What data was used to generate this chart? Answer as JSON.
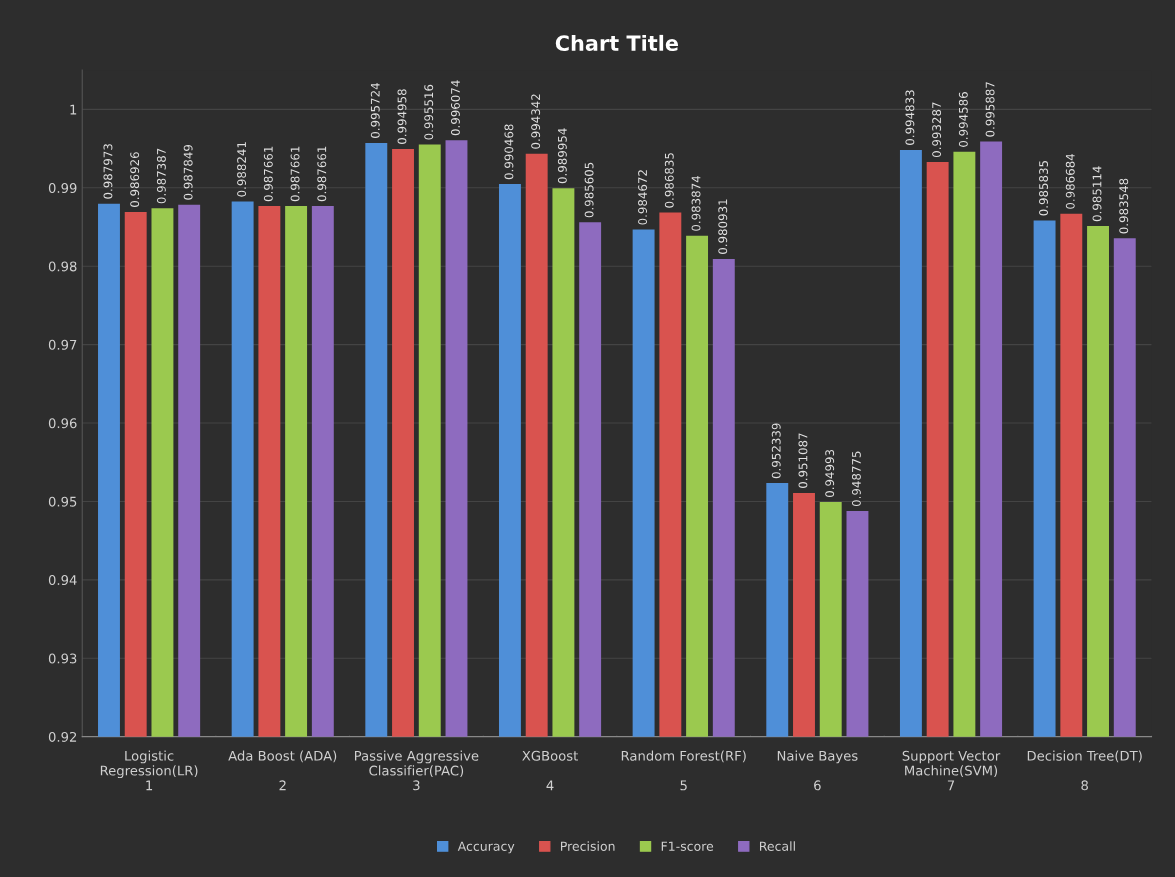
{
  "chart_data": {
    "type": "bar",
    "title": "Chart Title",
    "categories": [
      "Logistic\nRegression(LR)\n1",
      "Ada Boost (ADA)\n\n2",
      "Passive Aggressive\nClassifier(PAC)\n3",
      "XGBoost\n\n4",
      "Random Forest(RF)\n\n5",
      "Naive Bayes\n\n6",
      "Support Vector\nMachine(SVM)\n7",
      "Decision Tree(DT)\n\n8"
    ],
    "series": [
      {
        "name": "Accuracy",
        "color": "#4f8fd8",
        "values": [
          0.987973,
          0.988241,
          0.995724,
          0.990468,
          0.984672,
          0.952339,
          0.994833,
          0.985835
        ]
      },
      {
        "name": "Precision",
        "color": "#d9534f",
        "values": [
          0.986926,
          0.987661,
          0.994958,
          0.994342,
          0.986835,
          0.951087,
          0.993287,
          0.986684
        ]
      },
      {
        "name": "F1-score",
        "color": "#9bc94f",
        "values": [
          0.987387,
          0.987661,
          0.995516,
          0.989954,
          0.983874,
          0.94993,
          0.994586,
          0.985114
        ]
      },
      {
        "name": "Recall",
        "color": "#8e6bbf",
        "values": [
          0.987849,
          0.987661,
          0.996074,
          0.985605,
          0.980931,
          0.948775,
          0.995887,
          0.983548
        ]
      }
    ],
    "ylim": [
      0.92,
      1.005
    ],
    "yticks": [
      0.92,
      0.93,
      0.94,
      0.95,
      0.96,
      0.97,
      0.98,
      0.99,
      1
    ],
    "grid": "y",
    "legend": "bottom",
    "data_labels": true
  }
}
